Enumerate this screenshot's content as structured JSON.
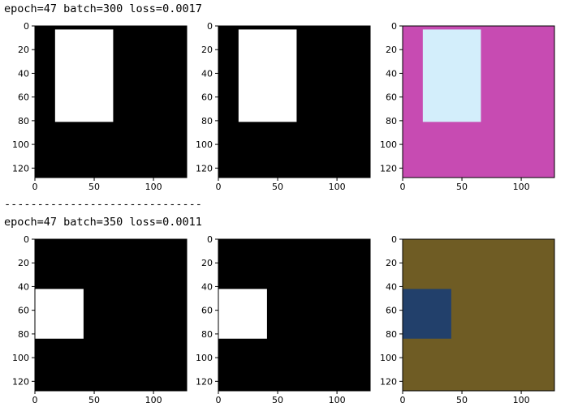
{
  "log_lines": [
    "epoch=47 batch=300 loss=0.0017",
    "epoch=47 batch=350 loss=0.0011"
  ],
  "separator": "------------------------------",
  "chart_data": [
    {
      "type": "heatmap",
      "block": 1,
      "panel": 1,
      "background": "#000000",
      "rect_color": "#ffffff",
      "rect": {
        "x0": 17,
        "x1": 66,
        "y0": 3,
        "y1": 81
      },
      "xlim": [
        0,
        128
      ],
      "ylim": [
        128,
        0
      ],
      "xticks": [
        0,
        50,
        100
      ],
      "yticks": [
        0,
        20,
        40,
        60,
        80,
        100,
        120
      ]
    },
    {
      "type": "heatmap",
      "block": 1,
      "panel": 2,
      "background": "#000000",
      "rect_color": "#ffffff",
      "rect": {
        "x0": 17,
        "x1": 66,
        "y0": 3,
        "y1": 81
      },
      "xlim": [
        0,
        128
      ],
      "ylim": [
        128,
        0
      ],
      "xticks": [
        0,
        50,
        100
      ],
      "yticks": [
        0,
        20,
        40,
        60,
        80,
        100,
        120
      ]
    },
    {
      "type": "heatmap",
      "block": 1,
      "panel": 3,
      "background": "#c74bb2",
      "rect_color": "#d3eefb",
      "rect": {
        "x0": 17,
        "x1": 66,
        "y0": 3,
        "y1": 81
      },
      "xlim": [
        0,
        128
      ],
      "ylim": [
        128,
        0
      ],
      "xticks": [
        0,
        50,
        100
      ],
      "yticks": [
        0,
        20,
        40,
        60,
        80,
        100,
        120
      ]
    },
    {
      "type": "heatmap",
      "block": 2,
      "panel": 1,
      "background": "#000000",
      "rect_color": "#ffffff",
      "rect": {
        "x0": 0,
        "x1": 41,
        "y0": 42,
        "y1": 84
      },
      "xlim": [
        0,
        128
      ],
      "ylim": [
        128,
        0
      ],
      "xticks": [
        0,
        50,
        100
      ],
      "yticks": [
        0,
        20,
        40,
        60,
        80,
        100,
        120
      ]
    },
    {
      "type": "heatmap",
      "block": 2,
      "panel": 2,
      "background": "#000000",
      "rect_color": "#ffffff",
      "rect": {
        "x0": 0,
        "x1": 41,
        "y0": 42,
        "y1": 84
      },
      "xlim": [
        0,
        128
      ],
      "ylim": [
        128,
        0
      ],
      "xticks": [
        0,
        50,
        100
      ],
      "yticks": [
        0,
        20,
        40,
        60,
        80,
        100,
        120
      ]
    },
    {
      "type": "heatmap",
      "block": 2,
      "panel": 3,
      "background": "#6f5c24",
      "rect_color": "#22406b",
      "rect": {
        "x0": 0,
        "x1": 41,
        "y0": 42,
        "y1": 84
      },
      "xlim": [
        0,
        128
      ],
      "ylim": [
        128,
        0
      ],
      "xticks": [
        0,
        50,
        100
      ],
      "yticks": [
        0,
        20,
        40,
        60,
        80,
        100,
        120
      ]
    }
  ]
}
